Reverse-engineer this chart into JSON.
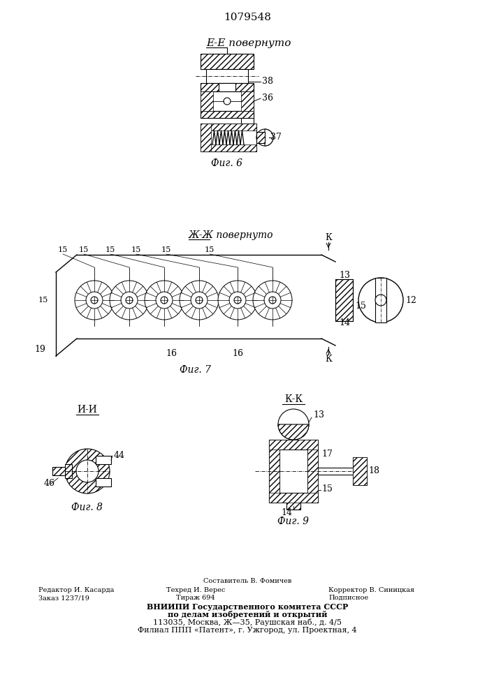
{
  "patent_number": "1079548",
  "background_color": "#ffffff",
  "line_color": "#000000",
  "fig6_label": "Фиг. 6",
  "fig7_label": "Фиг. 7",
  "fig8_label": "Фиг. 8",
  "fig9_label": "Фиг. 9",
  "section_ee": "Е-Е повернуто",
  "section_zhzh": "Ж-Ж повернуто",
  "section_kk": "К-К",
  "section_ii": "И-И",
  "footer_line1": "Составитель В. Фомичев",
  "footer_line2_left": "Редактор И. Касарда",
  "footer_line2_mid": "Техред И. Верес",
  "footer_line2_right": "Корректор В. Синицкая",
  "footer_line3_left": "Заказ 1237/19",
  "footer_line3_mid": "Тираж 694",
  "footer_line3_right": "Подписное",
  "footer_vniip1": "ВНИИПИ Государственного комитета СССР",
  "footer_vniip2": "по делам изобретений и открытий",
  "footer_vniip3": "113035, Москва, Ж—35, Раушская наб., д. 4/5",
  "footer_vniip4": "Филиал ППП «Патент», г. Ужгород, ул. Проектная, 4"
}
